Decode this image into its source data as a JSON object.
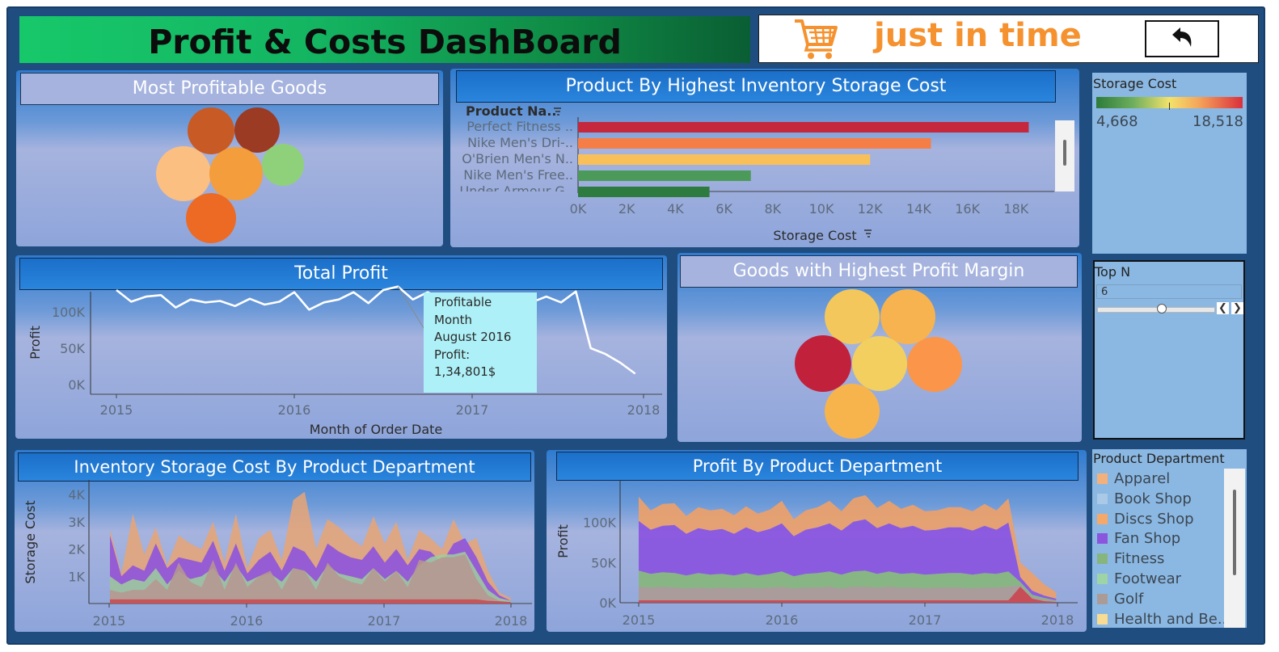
{
  "header": {
    "title": "Profit & Costs DashBoard",
    "brand": "just in time"
  },
  "colors": {
    "accent_orange": "#f5922f",
    "header_green": "#17c26a",
    "frame": "#1f4d7f"
  },
  "panels": {
    "most_profitable": {
      "title": "Most Profitable Goods"
    },
    "highest_storage": {
      "title": "Product By Highest Inventory Storage Cost",
      "dimension_label": "Product Na..",
      "measure_label": "Storage Cost"
    },
    "total_profit": {
      "title": "Total Profit"
    },
    "profit_margin": {
      "title": "Goods with Highest Profit Margin"
    },
    "storage_by_dept": {
      "title": "Inventory Storage Cost By Product Department"
    },
    "profit_by_dept": {
      "title": "Profit By Product Department"
    }
  },
  "tooltip": {
    "line1": "Profitable",
    "line2": "Month",
    "line3": "August 2016",
    "line4": "Profit:",
    "line5": "1,34,801$"
  },
  "storage_legend": {
    "title": "Storage Cost",
    "min": "4,668",
    "max": "18,518"
  },
  "top_n": {
    "title": "Top N",
    "value": "6",
    "slider_fraction": 0.5
  },
  "department_legend": {
    "title": "Product Department",
    "items": [
      {
        "label": "Apparel",
        "color": "#f4b07a"
      },
      {
        "label": "Book Shop",
        "color": "#a9c9e6"
      },
      {
        "label": "Discs Shop",
        "color": "#f4a86a"
      },
      {
        "label": "Fan Shop",
        "color": "#8a56de"
      },
      {
        "label": "Fitness",
        "color": "#86b57d"
      },
      {
        "label": "Footwear",
        "color": "#9ed3a6"
      },
      {
        "label": "Golf",
        "color": "#ab9b96"
      },
      {
        "label": "Health and Be..",
        "color": "#f7dc92"
      }
    ]
  },
  "chart_data": [
    {
      "id": "most_profitable_goods",
      "type": "bubble",
      "points": [
        {
          "value": 1,
          "color": "#c85a26"
        },
        {
          "value": 1,
          "color": "#9c3b23"
        },
        {
          "value": 1,
          "color": "#fbbf82"
        },
        {
          "value": 1,
          "color": "#f39d3c"
        },
        {
          "value": 1,
          "color": "#8fd17a"
        },
        {
          "value": 1,
          "color": "#ec6a24"
        }
      ]
    },
    {
      "id": "highest_storage_cost",
      "type": "bar",
      "orientation": "horizontal",
      "categories": [
        "Perfect Fitness ..",
        "Nike Men's Dri-..",
        "O'Brien Men's N..",
        "Nike Men's Free..",
        "Under Armour G.."
      ],
      "values": [
        18518,
        14500,
        12000,
        7100,
        5400
      ],
      "colors": [
        "#c5283d",
        "#f47e45",
        "#f9c05a",
        "#4c9a5a",
        "#2d7b3f"
      ],
      "xticks": [
        "0K",
        "2K",
        "4K",
        "6K",
        "8K",
        "10K",
        "12K",
        "14K",
        "16K",
        "18K"
      ],
      "xlim": [
        0,
        19500
      ],
      "xlabel": "Storage Cost",
      "ylabel": "Product Na.."
    },
    {
      "id": "total_profit",
      "type": "line",
      "x": [
        "2015-01",
        "2015-02",
        "2015-03",
        "2015-04",
        "2015-05",
        "2015-06",
        "2015-07",
        "2015-08",
        "2015-09",
        "2015-10",
        "2015-11",
        "2015-12",
        "2016-01",
        "2016-02",
        "2016-03",
        "2016-04",
        "2016-05",
        "2016-06",
        "2016-07",
        "2016-08",
        "2016-09",
        "2016-10",
        "2016-11",
        "2016-12",
        "2017-01",
        "2017-02",
        "2017-03",
        "2017-04",
        "2017-05",
        "2017-06",
        "2017-07",
        "2017-08",
        "2017-09",
        "2017-10",
        "2017-11",
        "2017-12"
      ],
      "values": [
        130000,
        114000,
        121000,
        123000,
        106000,
        117000,
        113000,
        115000,
        108000,
        118000,
        110000,
        114000,
        127000,
        103000,
        113000,
        117000,
        127000,
        112000,
        130000,
        134801,
        117000,
        127000,
        117000,
        122000,
        113000,
        113000,
        118000,
        118000,
        113000,
        121000,
        113000,
        128000,
        50000,
        42000,
        30000,
        15000
      ],
      "xticks": [
        "2015",
        "2016",
        "2017",
        "2018"
      ],
      "yticks": [
        "0K",
        "50K",
        "100K"
      ],
      "ylim": [
        0,
        150000
      ],
      "xlabel": "Month of Order Date",
      "ylabel": "Profit"
    },
    {
      "id": "highest_profit_margin",
      "type": "bubble",
      "points": [
        {
          "value": 1,
          "color": "#f3c75c"
        },
        {
          "value": 1,
          "color": "#f7b34f"
        },
        {
          "value": 1,
          "color": "#c2213c"
        },
        {
          "value": 1,
          "color": "#f2cf5f"
        },
        {
          "value": 1,
          "color": "#fb954a"
        },
        {
          "value": 1,
          "color": "#f7b44d"
        }
      ]
    },
    {
      "id": "storage_cost_by_department",
      "type": "area",
      "stacked": false,
      "xticks": [
        "2015",
        "2016",
        "2017",
        "2018"
      ],
      "yticks": [
        "1K",
        "2K",
        "3K",
        "4K"
      ],
      "ylim": [
        0,
        4300
      ],
      "ylabel": "Storage Cost",
      "series": [
        {
          "name": "Apparel",
          "color": "#e8a574",
          "values": [
            2700,
            1100,
            3300,
            1800,
            2800,
            1400,
            2500,
            2200,
            2000,
            3000,
            1500,
            3300,
            1300,
            2400,
            2700,
            1600,
            3800,
            4100,
            2000,
            3100,
            2800,
            2400,
            2100,
            3200,
            2200,
            3000,
            1600,
            2700,
            2400,
            2000,
            3100,
            2200,
            2400,
            1200,
            400,
            200
          ]
        },
        {
          "name": "Fan Shop",
          "color": "#8a4fe0",
          "values": [
            2500,
            1000,
            1400,
            1200,
            2200,
            1300,
            1700,
            1600,
            1500,
            2300,
            1200,
            2200,
            1100,
            1600,
            1900,
            1200,
            2100,
            1900,
            1300,
            2200,
            1900,
            1700,
            1600,
            2100,
            1500,
            2000,
            1400,
            2000,
            1900,
            1500,
            2200,
            2400,
            1700,
            800,
            300,
            100
          ]
        },
        {
          "name": "Footwear",
          "color": "#9ecf9c",
          "values": [
            1000,
            700,
            900,
            800,
            1300,
            700,
            1200,
            900,
            1000,
            1300,
            800,
            1400,
            800,
            1000,
            1100,
            800,
            1300,
            1200,
            800,
            1400,
            1100,
            1000,
            900,
            1300,
            900,
            1200,
            800,
            1400,
            1700,
            1800,
            1800,
            1900,
            1200,
            500,
            200,
            100
          ]
        },
        {
          "name": "Golf",
          "color": "#b7968f",
          "values": [
            500,
            400,
            500,
            500,
            900,
            500,
            1500,
            800,
            600,
            1600,
            500,
            1500,
            600,
            1000,
            1200,
            500,
            1300,
            1200,
            500,
            1500,
            1000,
            800,
            700,
            1300,
            800,
            1200,
            600,
            1600,
            1500,
            1700,
            1700,
            1800,
            900,
            300,
            100,
            50
          ]
        },
        {
          "name": "Health and Be..",
          "color": "#c9484f",
          "values": [
            150,
            150,
            150,
            150,
            150,
            150,
            150,
            150,
            150,
            150,
            150,
            150,
            150,
            150,
            150,
            150,
            150,
            150,
            150,
            150,
            150,
            150,
            150,
            150,
            150,
            150,
            150,
            150,
            150,
            150,
            150,
            150,
            150,
            100,
            80,
            50
          ]
        }
      ]
    },
    {
      "id": "profit_by_department",
      "type": "area",
      "stacked": true,
      "xticks": [
        "2015",
        "2016",
        "2017",
        "2018"
      ],
      "yticks": [
        "0K",
        "50K",
        "100K"
      ],
      "ylim": [
        0,
        145000
      ],
      "ylabel": "Profit",
      "series": [
        {
          "name": "Health and Be..",
          "color": "#c9484f",
          "values": [
            3000,
            3000,
            3000,
            3000,
            3000,
            3000,
            3000,
            3000,
            3000,
            3000,
            3000,
            3000,
            3000,
            3000,
            3000,
            3000,
            3000,
            3000,
            3000,
            3000,
            3000,
            3000,
            3000,
            3000,
            3000,
            3000,
            3000,
            3000,
            3000,
            3000,
            3000,
            3000,
            20000,
            5000,
            2000,
            1000
          ]
        },
        {
          "name": "Golf",
          "color": "#ab9b96",
          "values": [
            17000,
            16000,
            17000,
            16000,
            15000,
            16000,
            15000,
            16000,
            15000,
            16000,
            15000,
            16000,
            17000,
            15000,
            16000,
            16000,
            17000,
            15000,
            17000,
            17000,
            16000,
            17000,
            16000,
            16000,
            15000,
            16000,
            16000,
            16000,
            15000,
            16000,
            16000,
            17000,
            2000,
            2000,
            2000,
            1000
          ]
        },
        {
          "name": "Fitness",
          "color": "#86b57d",
          "values": [
            20000,
            17000,
            18000,
            18000,
            16000,
            18000,
            17000,
            17000,
            16000,
            18000,
            16000,
            17000,
            19000,
            15000,
            17000,
            18000,
            19000,
            17000,
            19000,
            20000,
            17000,
            19000,
            17000,
            18000,
            17000,
            17000,
            18000,
            18000,
            17000,
            18000,
            17000,
            19000,
            4000,
            3000,
            2000,
            1000
          ]
        },
        {
          "name": "Fan Shop",
          "color": "#8a56de",
          "values": [
            62000,
            55000,
            58000,
            60000,
            52000,
            56000,
            55000,
            56000,
            52000,
            57000,
            54000,
            56000,
            60000,
            50000,
            55000,
            57000,
            60000,
            55000,
            62000,
            64000,
            57000,
            60000,
            57000,
            59000,
            55000,
            55000,
            57000,
            57000,
            55000,
            59000,
            55000,
            61000,
            6000,
            5000,
            3000,
            2000
          ]
        },
        {
          "name": "Apparel",
          "color": "#e9a06d",
          "values": [
            30000,
            24000,
            27000,
            27000,
            22000,
            26000,
            25000,
            25000,
            23000,
            26000,
            23000,
            24000,
            28000,
            21000,
            24000,
            25000,
            28000,
            24000,
            29000,
            30000,
            25000,
            28000,
            24000,
            26000,
            24000,
            24000,
            25000,
            25000,
            24000,
            27000,
            24000,
            30000,
            18000,
            22000,
            14000,
            8000
          ]
        }
      ]
    }
  ]
}
